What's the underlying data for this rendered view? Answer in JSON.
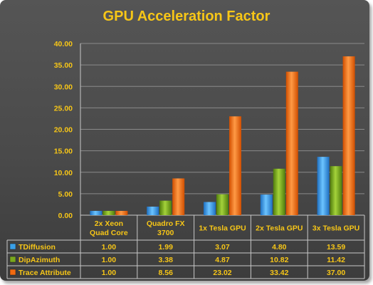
{
  "chart_data": {
    "type": "bar",
    "title": "GPU Acceleration Factor",
    "categories": [
      [
        "2x Xeon",
        "Quad Core"
      ],
      [
        "Quadro FX",
        "3700"
      ],
      [
        "1x Tesla GPU"
      ],
      [
        "2x Tesla GPU"
      ],
      [
        "3x Tesla GPU"
      ]
    ],
    "series": [
      {
        "name": "TDiffusion",
        "values": [
          1.0,
          1.99,
          3.07,
          4.8,
          13.59
        ],
        "labels": [
          "1.00",
          "1.99",
          "3.07",
          "4.80",
          "13.59"
        ],
        "color": "#3aa0e8"
      },
      {
        "name": "DipAzimuth",
        "values": [
          1.0,
          3.38,
          4.87,
          10.82,
          11.42
        ],
        "labels": [
          "1.00",
          "3.38",
          "4.87",
          "10.82",
          "11.42"
        ],
        "color": "#7aa81c"
      },
      {
        "name": "Trace Attribute",
        "values": [
          1.0,
          8.56,
          23.02,
          33.42,
          37.0
        ],
        "labels": [
          "1.00",
          "8.56",
          "23.02",
          "33.42",
          "37.00"
        ],
        "color": "#f26a10"
      }
    ],
    "ylim": [
      0,
      40
    ],
    "yticks": [
      "0.00",
      "5.00",
      "10.00",
      "15.00",
      "20.00",
      "25.00",
      "30.00",
      "35.00",
      "40.00"
    ],
    "grid": true,
    "legend": "data-table"
  }
}
